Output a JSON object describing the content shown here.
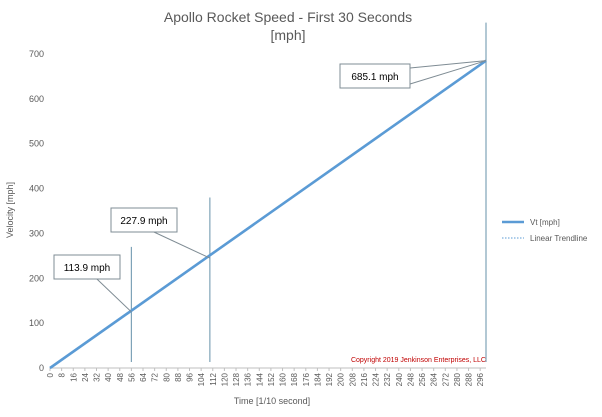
{
  "chart_data": {
    "type": "line",
    "title": "Apollo Rocket Speed - First 30 Seconds",
    "subtitle": "[mph]",
    "xlabel": "Time [1/10 second]",
    "ylabel": "Velocity [mph]",
    "ylim": [
      0,
      700
    ],
    "yticks": [
      0,
      100,
      200,
      300,
      400,
      500,
      600,
      700
    ],
    "xlim": [
      0,
      300
    ],
    "xticks": [
      0,
      8,
      16,
      24,
      32,
      40,
      48,
      56,
      64,
      72,
      80,
      88,
      96,
      104,
      112,
      120,
      128,
      136,
      144,
      152,
      160,
      168,
      176,
      184,
      192,
      200,
      208,
      216,
      224,
      232,
      240,
      248,
      256,
      264,
      272,
      280,
      288,
      296
    ],
    "grid": false,
    "legend_position": "right",
    "series": [
      {
        "name": "Vt [mph]",
        "color": "#5b9bd5",
        "style": "solid",
        "x": [
          0,
          300
        ],
        "y": [
          0,
          685.1
        ]
      },
      {
        "name": "Linear Trendline",
        "color": "#5b9bd5",
        "style": "dotted",
        "x": [
          0,
          300
        ],
        "y": [
          0,
          685.1
        ]
      }
    ],
    "markers": [
      {
        "x": 56,
        "top": 270
      },
      {
        "x": 110,
        "top": 380
      },
      {
        "x": 300,
        "top": 770
      }
    ],
    "callouts": [
      {
        "label": "113.9 mph",
        "x": 56,
        "y": 125
      },
      {
        "label": "227.9 mph",
        "x": 110,
        "y": 245
      },
      {
        "label": "685.1 mph",
        "x": 300,
        "y": 685.1
      }
    ],
    "annotation": "Copyright 2019 Jenkinson Enterprises, LLC",
    "line_color": "#5b9bd5",
    "marker_color": "#7fa3b8"
  }
}
